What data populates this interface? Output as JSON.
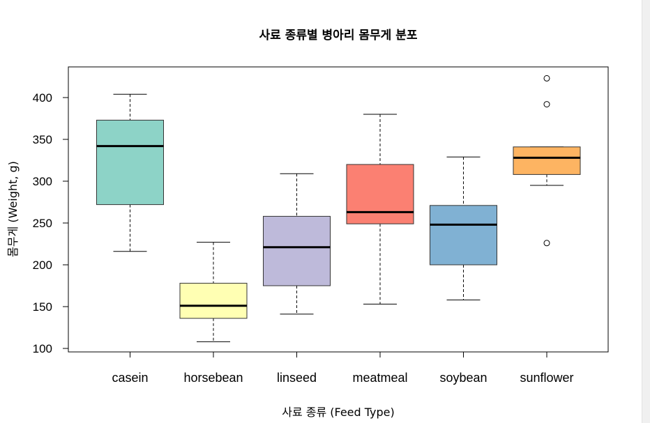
{
  "chart_data": {
    "type": "boxplot",
    "title": "사료 종류별 병아리 몸무게 분포",
    "xlabel": "사료 종류 (Feed Type)",
    "ylabel": "몸무게 (Weight, g)",
    "ylim": [
      100,
      430
    ],
    "yticks": [
      100,
      150,
      200,
      250,
      300,
      350,
      400
    ],
    "categories": [
      "casein",
      "horsebean",
      "linseed",
      "meatmeal",
      "soybean",
      "sunflower"
    ],
    "boxes": [
      {
        "category": "casein",
        "whisker_low": 216,
        "q1": 272,
        "median": 342,
        "q3": 373,
        "whisker_high": 404,
        "outliers": [],
        "color": "#8DD3C7"
      },
      {
        "category": "horsebean",
        "whisker_low": 108,
        "q1": 136,
        "median": 151,
        "q3": 178,
        "whisker_high": 227,
        "outliers": [],
        "color": "#FFFFB3"
      },
      {
        "category": "linseed",
        "whisker_low": 141,
        "q1": 175,
        "median": 221,
        "q3": 258,
        "whisker_high": 309,
        "outliers": [],
        "color": "#BEBADA"
      },
      {
        "category": "meatmeal",
        "whisker_low": 153,
        "q1": 249,
        "median": 263,
        "q3": 320,
        "whisker_high": 380,
        "outliers": [],
        "color": "#FB8072"
      },
      {
        "category": "soybean",
        "whisker_low": 158,
        "q1": 200,
        "median": 248,
        "q3": 271,
        "whisker_high": 329,
        "outliers": [],
        "color": "#80B1D3"
      },
      {
        "category": "sunflower",
        "whisker_low": 295,
        "q1": 308,
        "median": 328,
        "q3": 341,
        "whisker_high": 341,
        "outliers": [
          226,
          392,
          423
        ],
        "color": "#FDB462"
      }
    ]
  }
}
